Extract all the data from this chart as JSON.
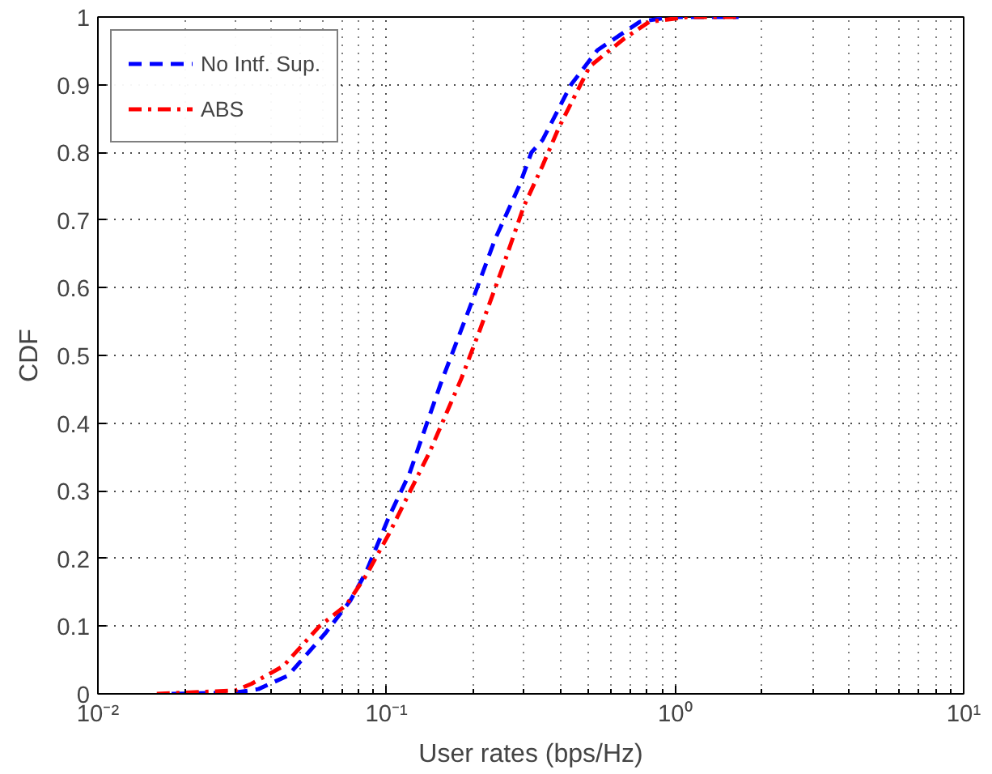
{
  "chart_data": {
    "type": "line",
    "xlabel": "User rates (bps/Hz)",
    "ylabel": "CDF",
    "log": "x",
    "xlim": [
      0.01,
      10
    ],
    "xticks": [
      {
        "value": 0.01,
        "label": "10⁻²"
      },
      {
        "value": 0.1,
        "label": "10⁻¹"
      },
      {
        "value": 1,
        "label": "10⁰"
      },
      {
        "value": 10,
        "label": "10¹"
      }
    ],
    "ylim": [
      0,
      1
    ],
    "yticks": [
      0,
      0.1,
      0.2,
      0.3,
      0.4,
      0.5,
      0.6,
      0.7,
      0.8,
      0.9,
      1
    ],
    "grid": true,
    "legend": "top left",
    "series": [
      {
        "name": "No Intf. Sup.",
        "color": "#0000ff",
        "line_style": "dashed",
        "x": [
          0.018,
          0.03,
          0.036,
          0.0456,
          0.0615,
          0.075,
          0.085,
          0.1016,
          0.12,
          0.154,
          0.198,
          0.238,
          0.288,
          0.318,
          0.347,
          0.436,
          0.538,
          0.755,
          0.97,
          1.66
        ],
        "values": [
          0,
          0.002,
          0.007,
          0.027,
          0.09,
          0.138,
          0.18,
          0.26,
          0.325,
          0.458,
          0.58,
          0.672,
          0.75,
          0.8,
          0.818,
          0.9,
          0.951,
          0.993,
          1,
          1
        ]
      },
      {
        "name": "ABS",
        "color": "#ff0000",
        "line_style": "dashdot",
        "x": [
          0.016,
          0.03,
          0.0341,
          0.0439,
          0.0586,
          0.0725,
          0.085,
          0.1016,
          0.141,
          0.181,
          0.21,
          0.254,
          0.299,
          0.347,
          0.394,
          0.506,
          0.666,
          0.814,
          1.1,
          1.66
        ],
        "values": [
          0,
          0.005,
          0.015,
          0.041,
          0.1,
          0.131,
          0.175,
          0.235,
          0.357,
          0.464,
          0.536,
          0.633,
          0.72,
          0.78,
          0.835,
          0.927,
          0.968,
          0.993,
          1,
          1
        ]
      }
    ]
  }
}
